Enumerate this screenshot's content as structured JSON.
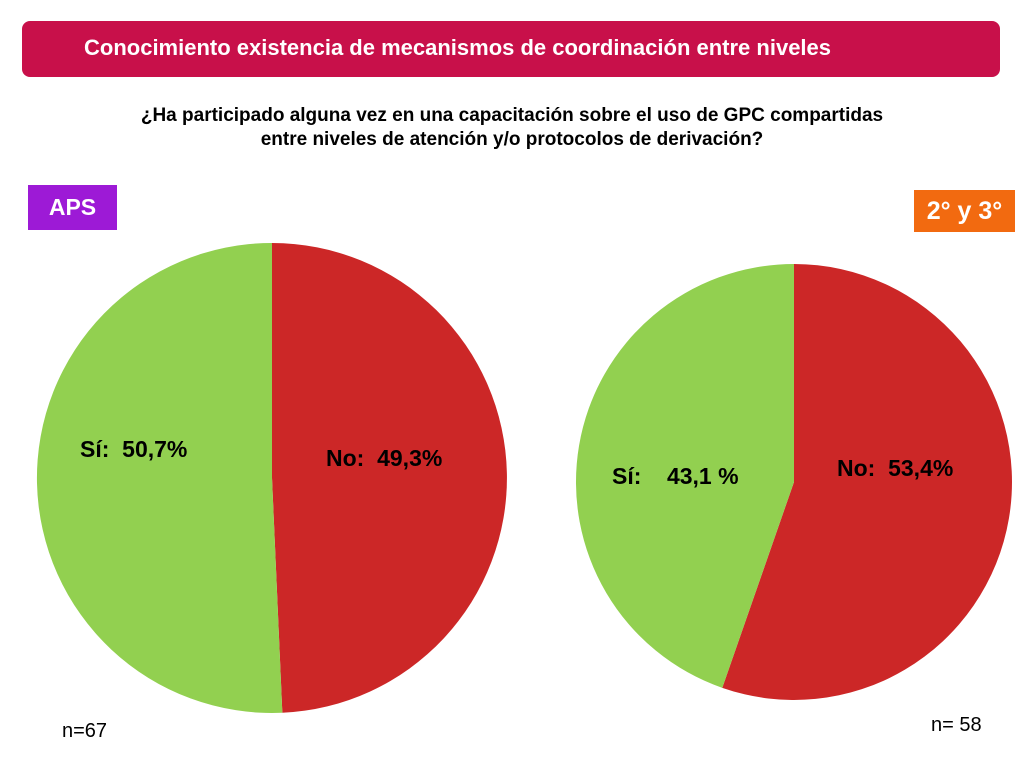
{
  "header": {
    "title": "Conocimiento existencia de mecanismos de  coordinación entre niveles"
  },
  "question": {
    "line1": "¿Ha participado alguna vez en una capacitación sobre el uso de GPC compartidas",
    "line2": "entre niveles de atención y/o protocolos de derivación?"
  },
  "colors": {
    "si": "#92d050",
    "no": "#cc2727",
    "header": "#c8104a",
    "badge_aps": "#9d1ad6",
    "badge_23": "#f26a10"
  },
  "chart_data": [
    {
      "type": "pie",
      "title": "APS",
      "n_label": "n=67",
      "slices": [
        {
          "label": "No",
          "display": "No:  49,3%",
          "value": 49.3
        },
        {
          "label": "Sí",
          "display": "Sí:  50,7%",
          "value": 50.7
        }
      ]
    },
    {
      "type": "pie",
      "title": "2° y 3°",
      "n_label": "n= 58",
      "slices": [
        {
          "label": "No",
          "display": "No:  53,4%",
          "value": 53.4
        },
        {
          "label": "Sí",
          "display": "Sí:    43,1 %",
          "value": 43.1
        }
      ]
    }
  ]
}
